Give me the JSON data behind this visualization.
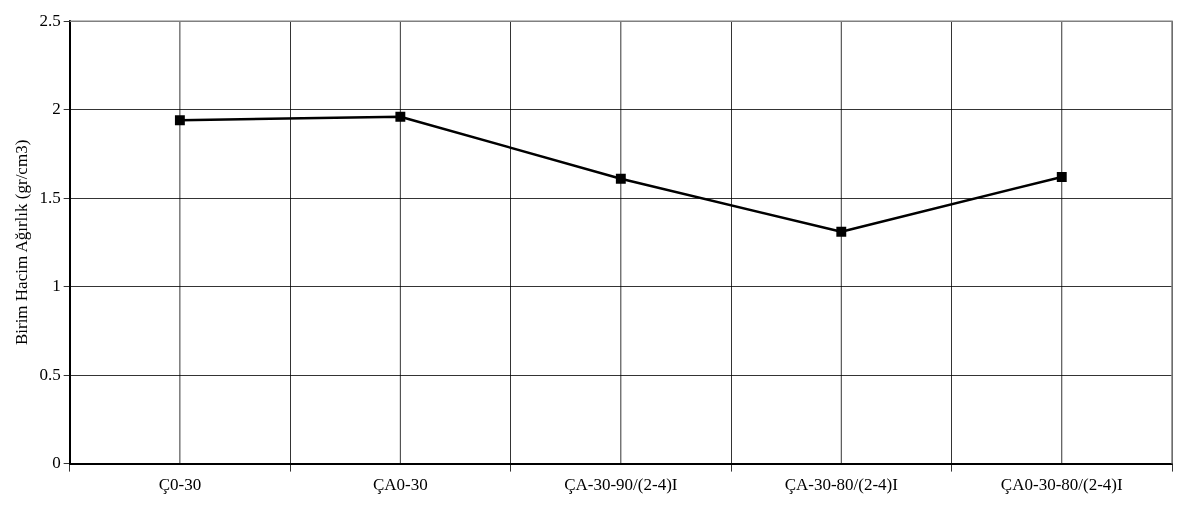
{
  "chart_data": {
    "type": "line",
    "ylabel": "Birim Hacim Ağırlık (gr/cm3)",
    "categories": [
      "Ç0-30",
      "ÇA0-30",
      "ÇA-30-90/(2-4)I",
      "ÇA-30-80/(2-4)I",
      "ÇA0-30-80/(2-4)I"
    ],
    "series": [
      {
        "color": "#000000",
        "values": [
          1.94,
          1.96,
          1.61,
          1.31,
          1.62
        ]
      }
    ],
    "ylim": [
      0,
      2.5
    ],
    "yticks": [
      0,
      0.5,
      1,
      1.5,
      2,
      2.5
    ],
    "grid": true,
    "legend": false,
    "marker": "square",
    "line_style": "solid"
  }
}
